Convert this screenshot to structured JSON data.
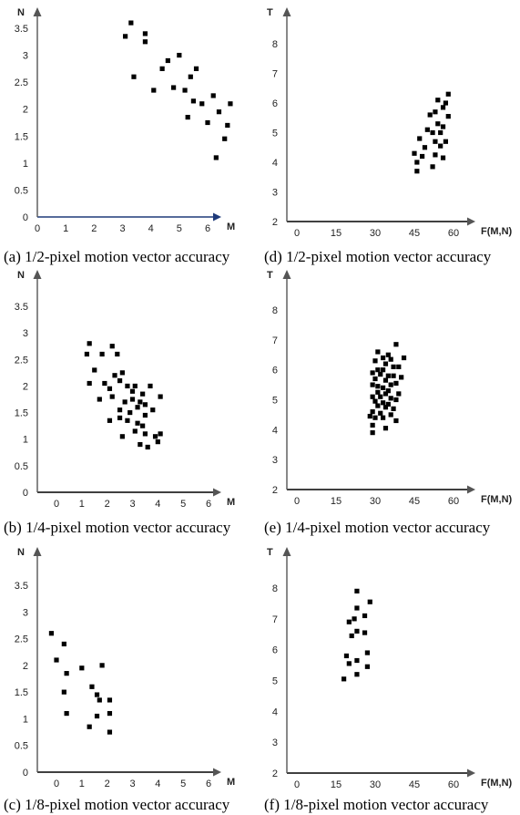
{
  "chart_data": [
    {
      "id": "a",
      "type": "scatter",
      "caption": "(a) 1/2-pixel motion vector accuracy",
      "xlabel": "M",
      "ylabel": "N",
      "xlim": [
        0,
        7
      ],
      "ylim": [
        0,
        3.7
      ],
      "xticks": [
        0,
        1,
        2,
        3,
        4,
        5,
        6
      ],
      "yticks": [
        0,
        0.5,
        1,
        1.5,
        2,
        2.5,
        3,
        3.5
      ],
      "xtick_labels": [
        "0",
        "1",
        "2",
        "3",
        "4",
        "5",
        "6"
      ],
      "ytick_labels": [
        "0",
        "0.5",
        "1",
        "1.5",
        "2",
        "2.5",
        "3",
        "3.5"
      ],
      "x_axis_color": "#1f3a7a",
      "points": [
        [
          3.3,
          3.6
        ],
        [
          3.1,
          3.35
        ],
        [
          3.8,
          3.4
        ],
        [
          3.8,
          3.25
        ],
        [
          3.4,
          2.6
        ],
        [
          4.6,
          2.9
        ],
        [
          5.0,
          3.0
        ],
        [
          4.4,
          2.75
        ],
        [
          4.1,
          2.35
        ],
        [
          4.8,
          2.4
        ],
        [
          5.2,
          2.35
        ],
        [
          5.4,
          2.6
        ],
        [
          5.6,
          2.75
        ],
        [
          5.5,
          2.15
        ],
        [
          5.3,
          1.85
        ],
        [
          5.8,
          2.1
        ],
        [
          6.2,
          2.25
        ],
        [
          6.4,
          1.95
        ],
        [
          6.8,
          2.1
        ],
        [
          6.7,
          1.7
        ],
        [
          6.0,
          1.75
        ],
        [
          6.6,
          1.45
        ],
        [
          6.3,
          1.1
        ]
      ]
    },
    {
      "id": "b",
      "type": "scatter",
      "caption": "(b) 1/4-pixel motion vector accuracy",
      "xlabel": "M",
      "ylabel": "N",
      "xlim": [
        0,
        7
      ],
      "ylim": [
        0,
        3.7
      ],
      "xticks": [
        0,
        1,
        2,
        3,
        4,
        5,
        6
      ],
      "yticks": [
        0,
        0.5,
        1,
        1.5,
        2,
        2.5,
        3,
        3.5
      ],
      "xtick_labels": [
        "0",
        "1",
        "2",
        "3",
        "4",
        "5",
        "6"
      ],
      "ytick_labels": [
        "0",
        "0.5",
        "1",
        "1.5",
        "2",
        "2.5",
        "3",
        "3.5"
      ],
      "x_axis_color": "#000000",
      "points": [
        [
          1.3,
          2.8
        ],
        [
          1.2,
          2.6
        ],
        [
          2.2,
          2.75
        ],
        [
          2.4,
          2.6
        ],
        [
          1.8,
          2.6
        ],
        [
          1.5,
          2.3
        ],
        [
          2.3,
          2.2
        ],
        [
          2.6,
          2.25
        ],
        [
          1.3,
          2.05
        ],
        [
          1.9,
          2.05
        ],
        [
          2.1,
          1.95
        ],
        [
          2.5,
          2.1
        ],
        [
          2.8,
          2.0
        ],
        [
          3.0,
          1.9
        ],
        [
          3.1,
          2.0
        ],
        [
          3.4,
          1.85
        ],
        [
          3.7,
          2.0
        ],
        [
          4.1,
          1.8
        ],
        [
          1.7,
          1.75
        ],
        [
          2.2,
          1.8
        ],
        [
          2.7,
          1.7
        ],
        [
          3.0,
          1.75
        ],
        [
          3.3,
          1.7
        ],
        [
          3.5,
          1.65
        ],
        [
          3.2,
          1.6
        ],
        [
          2.5,
          1.55
        ],
        [
          2.9,
          1.5
        ],
        [
          3.5,
          1.45
        ],
        [
          3.8,
          1.55
        ],
        [
          2.1,
          1.35
        ],
        [
          2.5,
          1.4
        ],
        [
          2.8,
          1.35
        ],
        [
          3.2,
          1.3
        ],
        [
          3.4,
          1.25
        ],
        [
          3.1,
          1.15
        ],
        [
          3.5,
          1.1
        ],
        [
          3.9,
          1.05
        ],
        [
          4.1,
          1.1
        ],
        [
          2.6,
          1.05
        ],
        [
          3.3,
          0.9
        ],
        [
          3.6,
          0.85
        ],
        [
          4.0,
          0.95
        ]
      ]
    },
    {
      "id": "c",
      "type": "scatter",
      "caption": "(c) 1/8-pixel motion vector accuracy",
      "xlabel": "M",
      "ylabel": "N",
      "xlim": [
        -0.6,
        7
      ],
      "ylim": [
        0,
        3.7
      ],
      "xticks": [
        0,
        1,
        2,
        3,
        4,
        5,
        6
      ],
      "yticks": [
        0,
        0.5,
        1,
        1.5,
        2,
        2.5,
        3,
        3.5
      ],
      "xtick_labels": [
        "0",
        "1",
        "2",
        "3",
        "4",
        "5",
        "6"
      ],
      "ytick_labels": [
        "0",
        "0.5",
        "1",
        "1.5",
        "2",
        "2.5",
        "3",
        "3.5"
      ],
      "x_axis_color": "#000000",
      "points": [
        [
          -0.2,
          2.6
        ],
        [
          0.3,
          2.4
        ],
        [
          0.0,
          2.1
        ],
        [
          1.0,
          1.95
        ],
        [
          1.8,
          2.0
        ],
        [
          0.4,
          1.85
        ],
        [
          0.3,
          1.5
        ],
        [
          1.4,
          1.6
        ],
        [
          1.6,
          1.45
        ],
        [
          1.7,
          1.35
        ],
        [
          2.1,
          1.35
        ],
        [
          2.1,
          1.1
        ],
        [
          0.4,
          1.1
        ],
        [
          1.6,
          1.05
        ],
        [
          1.3,
          0.85
        ],
        [
          2.1,
          0.75
        ]
      ]
    },
    {
      "id": "d",
      "type": "scatter",
      "caption": "(d) 1/2-pixel motion vector accuracy",
      "xlabel": "F(M,N)",
      "ylabel": "T",
      "xlim": [
        0,
        66
      ],
      "ylim": [
        2,
        9.3
      ],
      "xticks": [
        0,
        15,
        30,
        45,
        60
      ],
      "yticks": [
        2,
        3,
        4,
        5,
        6,
        7,
        8
      ],
      "xtick_labels": [
        "0",
        "15",
        "30",
        "45",
        "60"
      ],
      "ytick_labels": [
        "2",
        "3",
        "4",
        "5",
        "6",
        "7",
        "8"
      ],
      "x_axis_color": "#000000",
      "points": [
        [
          58,
          6.3
        ],
        [
          54,
          6.1
        ],
        [
          57,
          6.0
        ],
        [
          56,
          5.85
        ],
        [
          53,
          5.7
        ],
        [
          51,
          5.6
        ],
        [
          58,
          5.55
        ],
        [
          54,
          5.3
        ],
        [
          56,
          5.2
        ],
        [
          50,
          5.1
        ],
        [
          52,
          5.0
        ],
        [
          55,
          5.0
        ],
        [
          47,
          4.8
        ],
        [
          53,
          4.7
        ],
        [
          57,
          4.7
        ],
        [
          49,
          4.5
        ],
        [
          55,
          4.55
        ],
        [
          48,
          4.2
        ],
        [
          45,
          4.3
        ],
        [
          53,
          4.25
        ],
        [
          56,
          4.15
        ],
        [
          46,
          4.0
        ],
        [
          52,
          3.85
        ],
        [
          46,
          3.7
        ]
      ]
    },
    {
      "id": "e",
      "type": "scatter",
      "caption": "(e) 1/4-pixel motion vector accuracy",
      "xlabel": "F(M,N)",
      "ylabel": "T",
      "xlim": [
        0,
        66
      ],
      "ylim": [
        2,
        9.3
      ],
      "xticks": [
        0,
        15,
        30,
        45,
        60
      ],
      "yticks": [
        2,
        3,
        4,
        5,
        6,
        7,
        8
      ],
      "xtick_labels": [
        "0",
        "15",
        "30",
        "45",
        "60"
      ],
      "ytick_labels": [
        "2",
        "3",
        "4",
        "5",
        "6",
        "7",
        "8"
      ],
      "x_axis_color": "#000000",
      "points": [
        [
          38,
          6.85
        ],
        [
          31,
          6.6
        ],
        [
          35,
          6.5
        ],
        [
          33,
          6.4
        ],
        [
          36,
          6.35
        ],
        [
          41,
          6.4
        ],
        [
          30,
          6.3
        ],
        [
          34,
          6.2
        ],
        [
          37,
          6.1
        ],
        [
          39,
          6.1
        ],
        [
          31,
          6.0
        ],
        [
          33,
          6.0
        ],
        [
          29,
          5.9
        ],
        [
          32,
          5.85
        ],
        [
          35,
          5.8
        ],
        [
          37,
          5.8
        ],
        [
          40,
          5.75
        ],
        [
          30,
          5.7
        ],
        [
          34,
          5.65
        ],
        [
          36,
          5.5
        ],
        [
          38,
          5.55
        ],
        [
          29,
          5.5
        ],
        [
          31,
          5.45
        ],
        [
          33,
          5.4
        ],
        [
          35,
          5.3
        ],
        [
          31,
          5.25
        ],
        [
          34,
          5.2
        ],
        [
          39,
          5.2
        ],
        [
          29,
          5.1
        ],
        [
          32,
          5.1
        ],
        [
          36,
          5.05
        ],
        [
          38,
          5.0
        ],
        [
          30,
          4.95
        ],
        [
          33,
          4.9
        ],
        [
          35,
          4.85
        ],
        [
          31,
          4.8
        ],
        [
          34,
          4.75
        ],
        [
          37,
          4.7
        ],
        [
          29,
          4.6
        ],
        [
          32,
          4.55
        ],
        [
          36,
          4.5
        ],
        [
          28,
          4.45
        ],
        [
          30,
          4.4
        ],
        [
          33,
          4.4
        ],
        [
          38,
          4.3
        ],
        [
          29,
          4.15
        ],
        [
          34,
          4.05
        ],
        [
          29,
          3.9
        ]
      ]
    },
    {
      "id": "f",
      "type": "scatter",
      "caption": "(f) 1/8-pixel motion vector accuracy",
      "xlabel": "F(M,N)",
      "ylabel": "T",
      "xlim": [
        0,
        66
      ],
      "ylim": [
        2,
        9.3
      ],
      "xticks": [
        0,
        15,
        30,
        45,
        60
      ],
      "yticks": [
        2,
        3,
        4,
        5,
        6,
        7,
        8
      ],
      "xtick_labels": [
        "0",
        "15",
        "30",
        "45",
        "60"
      ],
      "ytick_labels": [
        "2",
        "3",
        "4",
        "5",
        "6",
        "7",
        "8"
      ],
      "x_axis_color": "#000000",
      "points": [
        [
          23,
          7.9
        ],
        [
          23,
          7.35
        ],
        [
          28,
          7.55
        ],
        [
          22,
          7.0
        ],
        [
          26,
          7.1
        ],
        [
          20,
          6.9
        ],
        [
          21,
          6.45
        ],
        [
          23,
          6.6
        ],
        [
          26,
          6.55
        ],
        [
          19,
          5.8
        ],
        [
          27,
          5.9
        ],
        [
          23,
          5.65
        ],
        [
          20,
          5.55
        ],
        [
          27,
          5.45
        ],
        [
          23,
          5.2
        ],
        [
          18,
          5.05
        ]
      ]
    }
  ]
}
